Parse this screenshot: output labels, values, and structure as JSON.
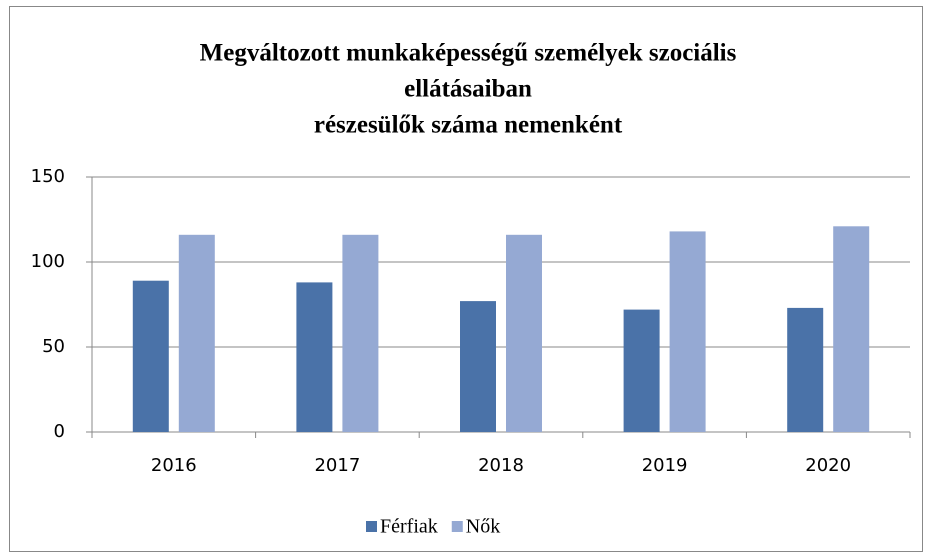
{
  "chart_data": {
    "type": "bar",
    "title": [
      "Megváltozott munkaképességű személyek szociális",
      "ellátásaiban",
      "részesülők száma nemenként"
    ],
    "categories": [
      "2016",
      "2017",
      "2018",
      "2019",
      "2020"
    ],
    "series": [
      {
        "name": "Férfiak",
        "color": "#4a72a8",
        "values": [
          89,
          88,
          77,
          72,
          73
        ]
      },
      {
        "name": "Nők",
        "color": "#95a9d3",
        "values": [
          116,
          116,
          116,
          118,
          121
        ]
      }
    ],
    "ylim": [
      0,
      150
    ],
    "yticks": [
      0,
      50,
      100,
      150
    ],
    "grid": true,
    "legend": "bottom"
  }
}
